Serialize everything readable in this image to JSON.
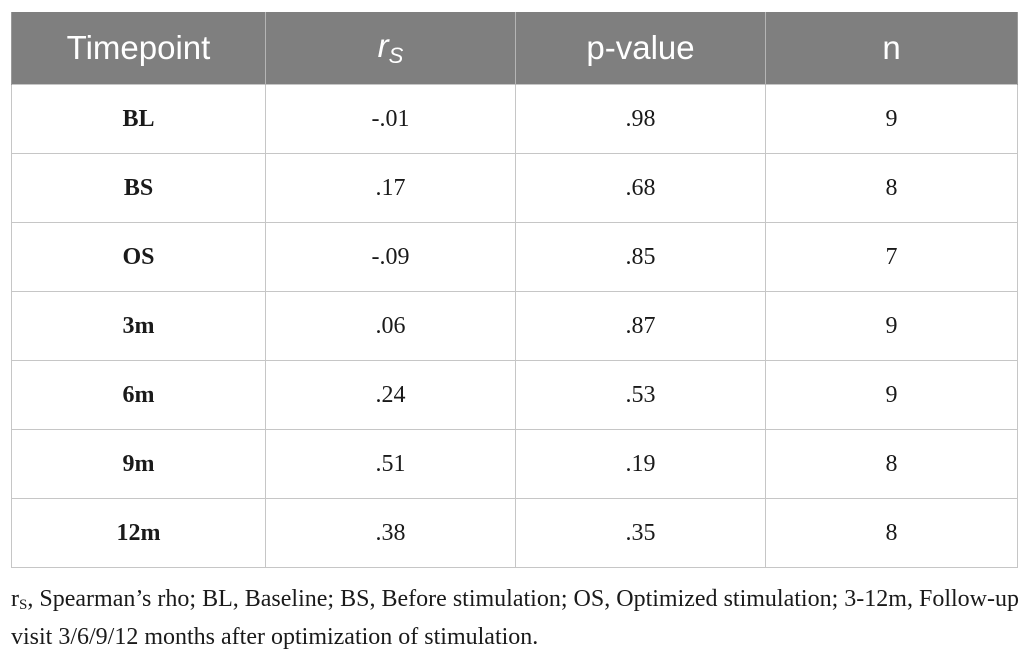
{
  "table": {
    "headers": {
      "timepoint": "Timepoint",
      "rs_main": "r",
      "rs_sub": "S",
      "pvalue": "p-value",
      "n": "n"
    },
    "rows": [
      {
        "timepoint": "BL",
        "rs": "-.01",
        "p": ".98",
        "n": "9"
      },
      {
        "timepoint": "BS",
        "rs": ".17",
        "p": ".68",
        "n": "8"
      },
      {
        "timepoint": "OS",
        "rs": "-.09",
        "p": ".85",
        "n": "7"
      },
      {
        "timepoint": "3m",
        "rs": ".06",
        "p": ".87",
        "n": "9"
      },
      {
        "timepoint": "6m",
        "rs": ".24",
        "p": ".53",
        "n": "9"
      },
      {
        "timepoint": "9m",
        "rs": ".51",
        "p": ".19",
        "n": "8"
      },
      {
        "timepoint": "12m",
        "rs": ".38",
        "p": ".35",
        "n": "8"
      }
    ]
  },
  "footnote": {
    "symbol_main": "r",
    "symbol_sub": "S",
    "text": ", Spearman’s rho; BL, Baseline; BS, Before stimulation; OS, Optimized stimulation; 3-12m, Follow-up visit 3/6/9/12 months after optimization of stimulation."
  },
  "colors": {
    "header_bg": "#7f7f7f",
    "header_text": "#ffffff",
    "grid": "#c6c6c6",
    "body_text": "#1a1a1a"
  }
}
